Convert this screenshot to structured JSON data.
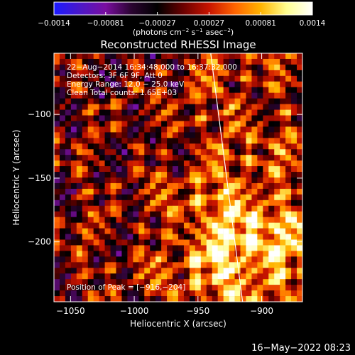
{
  "colorbar": {
    "ticks": [
      "−0.0014",
      "−0.00081",
      "−0.00027",
      "0.00027",
      "0.00081",
      "0.0014"
    ],
    "unit_main": "(photons cm",
    "unit_exp1": "−2",
    "unit_mid": " s",
    "unit_exp2": "−1",
    "unit_mid2": " asec",
    "unit_exp3": "−2",
    "unit_end": ")",
    "colormap": [
      "#1a1aff",
      "#4b18c8",
      "#7a0ea0",
      "#2a0430",
      "#000000",
      "#6a0000",
      "#c81400",
      "#ff6400",
      "#ffb400",
      "#ffff90",
      "#ffffff"
    ]
  },
  "chart_data": {
    "type": "heatmap",
    "title": "Reconstructed RHESSI Image",
    "xlabel": "Heliocentric X (arcsec)",
    "ylabel": "Heliocentric Y (arcsec)",
    "xlim": [
      -1063,
      -868
    ],
    "ylim": [
      -247,
      -52
    ],
    "x_ticks": [
      -1050,
      -1000,
      -950,
      -900
    ],
    "y_ticks": [
      -100,
      -150,
      -200
    ],
    "x_tick_labels": [
      "−1050",
      "−1000",
      "−950",
      "−900"
    ],
    "y_tick_labels": [
      "−100",
      "−150",
      "−200"
    ],
    "limb_line": [
      [
        -940,
        -52
      ],
      [
        -915,
        -247
      ]
    ],
    "annotations": [
      "22−Aug−2014 16:34:48.000 to 16:37:32.000",
      "Detectors: 3F 6F 9F, Att 0",
      "Energy Range: 12.0 − 25.0 keV",
      "Clean    Total counts: 1.65E+03"
    ],
    "peak_label": "Position of Peak = [−916,−204]",
    "peak": [
      -916,
      -204
    ]
  },
  "footer": {
    "date": "16−May−2022 08:23"
  }
}
